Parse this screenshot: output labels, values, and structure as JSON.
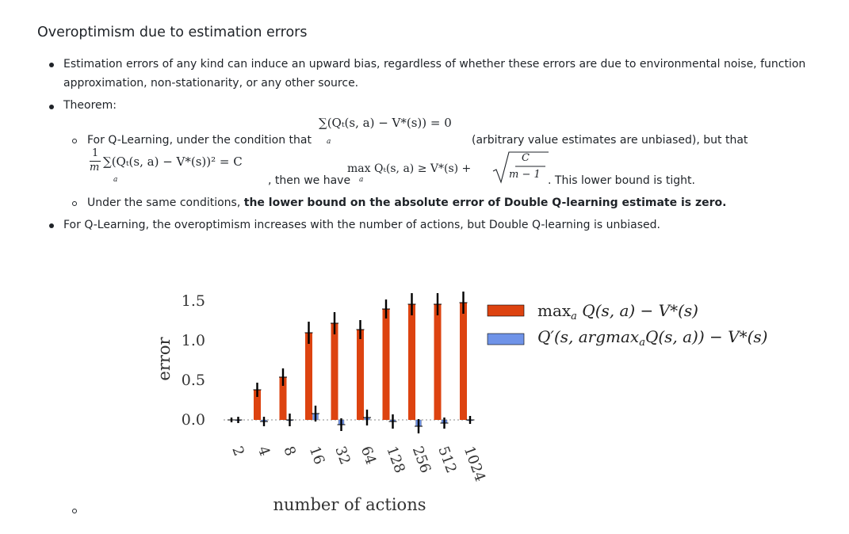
{
  "heading": "Overoptimism due to estimation errors",
  "bullets": {
    "b1_line1": "Estimation errors of any kind can induce an upward bias, regardless of whether these errors are due to environmental noise, function",
    "b1_line2": "approximation, non-stationarity, or any other source.",
    "b2_label": "Theorem:",
    "sub1_prefix": "For Q-Learning, under the condition that",
    "sub1_mid": "(arbitrary value estimates are unbiased), but that",
    "sub1_then": ", then we have",
    "sub1_tail": ". This lower bound is tight.",
    "sub2_prefix": "Under the same conditions,",
    "sub2_bold": "the lower bound on the absolute error of Double Q-learning estimate is zero.",
    "b3": "For Q-Learning, the overoptimism increases with the number of actions, but Double Q-learning is unbiased."
  },
  "formulas": {
    "cond_top": "∑(Qₜ(s, a) − V*(s)) = 0",
    "cond_sub": "a",
    "frac_num": "1",
    "frac_den": "m",
    "sq_sum": "∑(Qₜ(s, a) − V*(s))² = C",
    "sq_sub": "a",
    "max_expr": "max Qₜ(s, a) ≥ V*(s) +",
    "max_sub": "a",
    "sqrt_num": "C",
    "sqrt_den": "m − 1"
  },
  "chart_data": {
    "type": "bar",
    "categories": [
      "2",
      "4",
      "8",
      "16",
      "32",
      "64",
      "128",
      "256",
      "512",
      "1024"
    ],
    "series": [
      {
        "name": "max_a Q(s, a) − V*(s)",
        "values": [
          0.0,
          0.38,
          0.54,
          1.1,
          1.22,
          1.14,
          1.4,
          1.46,
          1.46,
          1.48
        ],
        "errors": [
          0.03,
          0.09,
          0.11,
          0.14,
          0.14,
          0.12,
          0.12,
          0.14,
          0.14,
          0.14
        ]
      },
      {
        "name": "Q′(s, argmax_a Q(s, a)) − V*(s)",
        "values": [
          0.0,
          -0.02,
          0.0,
          0.08,
          -0.06,
          0.03,
          -0.02,
          -0.08,
          -0.04,
          0.0
        ],
        "errors": [
          0.04,
          0.06,
          0.08,
          0.1,
          0.08,
          0.1,
          0.09,
          0.09,
          0.07,
          0.05
        ]
      }
    ],
    "yticks": [
      "1.5",
      "1.0",
      "0.5",
      "0.0"
    ],
    "ylim": [
      -0.22,
      1.7
    ],
    "xlabel": "number of actions",
    "ylabel": "error",
    "colors": {
      "red": "#dd4310",
      "blue": "#6f93e8",
      "line": "#000000"
    },
    "legend": {
      "placement": "top-right",
      "red_label_fn": "max",
      "red_label_sub": "a",
      "red_label_rest": " Q(s, a) − V*(s)",
      "blue_label_start": "Q′(s, argmax",
      "blue_label_sub": "a",
      "blue_label_rest": "Q(s, a)) − V*(s)"
    }
  }
}
